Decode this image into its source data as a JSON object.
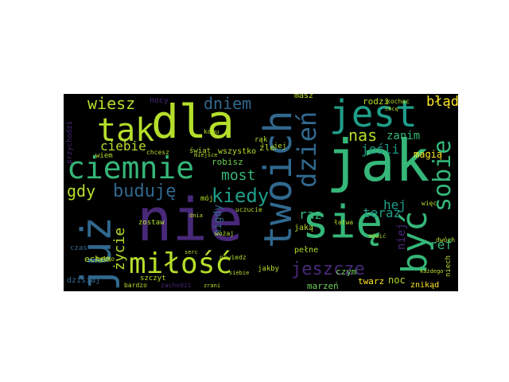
{
  "palette": {
    "background": "#000000",
    "yellow_green": "#b5de2b",
    "green": "#35b779",
    "teal": "#1f9e89",
    "blue": "#31688e",
    "indigo": "#3e4989",
    "purple": "#482878",
    "bright_green": "#6ece58",
    "yellow": "#fde725"
  },
  "words": {
    "jak": "jak",
    "nie": "nie",
    "sie": "się",
    "dla": "dla",
    "tak": "tak",
    "jest": "jest",
    "juz": "już",
    "twoich": "twoich",
    "ciemnie": "ciemnie",
    "milosc": "miłość",
    "byc": "być",
    "dzien": "dzień",
    "sobie": "sobie",
    "jeszcze": "jeszcze",
    "buduje": "buduję",
    "kiedy": "kiedy",
    "wiesz": "wiesz",
    "dniem": "dniem",
    "blad": "błąd",
    "gdy": "gdy",
    "most": "most",
    "nas": "nas",
    "zanim": "zanim",
    "jesli": "jeśli",
    "ciebie": "ciebie",
    "hej": "hej",
    "teraz": "teraz",
    "raz": "raz",
    "zycie": "życie",
    "nigdy": "nigdy",
    "ref": "ref",
    "niej": "niej",
    "magia": "magią",
    "echem": "echem",
    "noc": "noc",
    "twarz": "twarz",
    "czym": "czym",
    "marzen": "marzeń",
    "znikad": "znikąd",
    "rodzi": "rodzi",
    "robisz": "robisz",
    "wszystko": "wszystko",
    "swiat": "świat",
    "jaka": "jaką",
    "pelne": "pełne",
    "dzisiaj": "dzisiaj",
    "zachodzi": "zachodzi",
    "bardzo": "bardzo",
    "szczyt": "szczyt",
    "powiedz": "powiedz",
    "jakby": "jakby",
    "niech": "niech",
    "przychodzi": "przychodzi",
    "nocy": "nocy",
    "miejsce": "miejsce",
    "masz": "masz",
    "kochac": "kochac",
    "wiem": "wiem",
    "zle": "źle",
    "jej": "jej",
    "rak": "rąk",
    "latwa": "łatwa",
    "dwoch": "dwóch",
    "czas": "czas",
    "tylko": "tylko",
    "zostaw": "zostaw",
    "uczucie": "uczucie",
    "moj": "mój",
    "dnia": "dnia",
    "siebie": "siebie",
    "chcesz": "chcesz",
    "komu": "komu",
    "serc": "serc",
    "wozaj": "wożaj",
    "mowic": "mówić",
    "kazdego": "każdego",
    "wiec": "więc",
    "chce": "chcę",
    "zrani": "zrani"
  }
}
